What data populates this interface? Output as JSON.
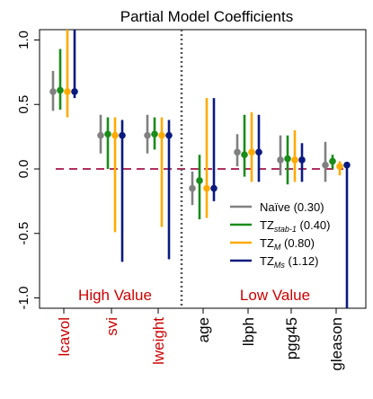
{
  "chart_data": {
    "type": "scatter",
    "title": "Partial Model Coefficients",
    "ylim": [
      -1.08,
      1.08
    ],
    "yticks": [
      "1.0",
      "0.5",
      "0.0",
      "-0.5",
      "-1.0"
    ],
    "categories": [
      "lcavol",
      "svi",
      "lweight",
      "age",
      "lbph",
      "pgg45",
      "gleason"
    ],
    "category_colors": [
      "#cc0000",
      "#cc0000",
      "#cc0000",
      "#000000",
      "#000000",
      "#000000",
      "#000000"
    ],
    "region_labels": {
      "left": "High Value",
      "right": "Low Value",
      "color": "#cc0000"
    },
    "reference_line": {
      "value": 0.0,
      "color": "#b03060"
    },
    "divider_after_category": "lweight",
    "series": [
      {
        "name": "Naïve",
        "legend_main": "Naïve",
        "legend_sub": "",
        "legend_suffix": " (0.30)",
        "color": "#808080",
        "estimates": [
          0.6,
          0.26,
          0.26,
          -0.15,
          0.13,
          0.07,
          0.03
        ],
        "lower": [
          0.45,
          0.12,
          0.12,
          -0.28,
          0.02,
          -0.05,
          -0.1
        ],
        "upper": [
          0.76,
          0.42,
          0.42,
          -0.02,
          0.27,
          0.26,
          0.21
        ]
      },
      {
        "name": "TZ stab-1",
        "legend_main": "TZ",
        "legend_sub": "stab-1",
        "legend_suffix": " (0.40)",
        "color": "#1a8c1a",
        "estimates": [
          0.61,
          0.27,
          0.27,
          -0.09,
          0.11,
          0.08,
          0.06
        ],
        "lower": [
          0.46,
          0.0,
          0.15,
          -0.39,
          -0.06,
          -0.12,
          0.0
        ],
        "upper": [
          0.93,
          0.4,
          0.4,
          0.11,
          0.42,
          0.26,
          0.11
        ]
      },
      {
        "name": "TZ M",
        "legend_main": "TZ",
        "legend_sub": "M",
        "legend_suffix": " (0.80)",
        "color": "#ffaa00",
        "estimates": [
          0.6,
          0.26,
          0.26,
          -0.15,
          0.13,
          0.07,
          0.02
        ],
        "lower": [
          0.4,
          -0.49,
          -0.45,
          -0.38,
          -0.1,
          -0.1,
          -0.05
        ],
        "upper": [
          1.08,
          0.4,
          0.4,
          0.55,
          0.44,
          0.3,
          0.06
        ]
      },
      {
        "name": "TZ Ms",
        "legend_main": "TZ",
        "legend_sub": "Ms",
        "legend_suffix": " (1.12)",
        "color": "#0a1a80",
        "estimates": [
          0.6,
          0.26,
          0.26,
          -0.15,
          0.13,
          0.07,
          0.03
        ],
        "lower": [
          0.55,
          -0.72,
          -0.7,
          -0.25,
          -0.1,
          -0.1,
          -1.08
        ],
        "upper": [
          1.08,
          0.38,
          0.38,
          0.55,
          0.42,
          0.2,
          0.03
        ]
      }
    ]
  }
}
